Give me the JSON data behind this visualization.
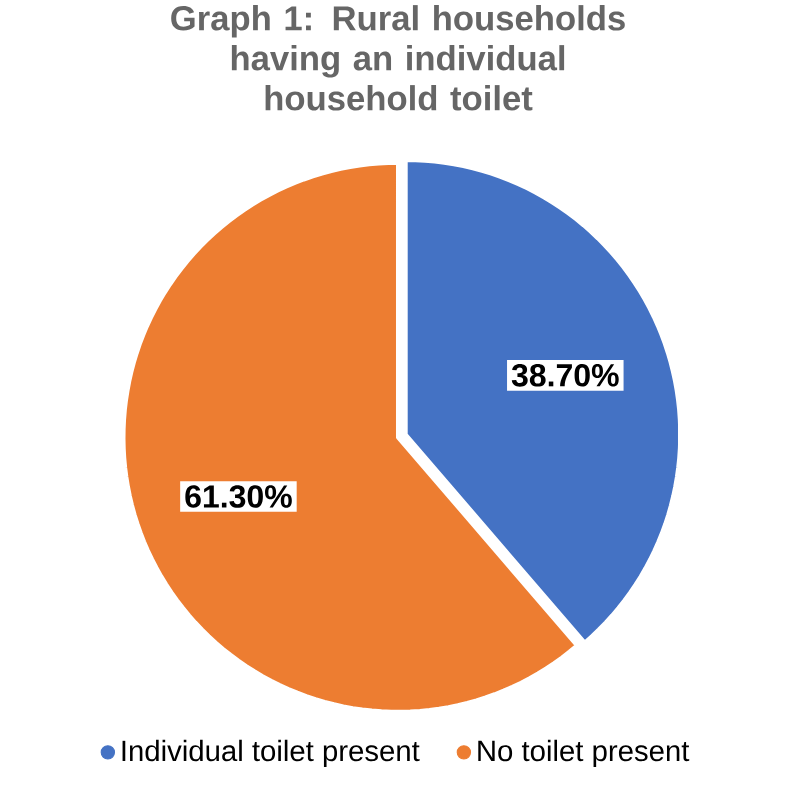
{
  "chart_data": {
    "type": "pie",
    "title": "Graph 1: Rural households having an individual household toilet",
    "categories": [
      "Individual toilet present",
      "No toilet present"
    ],
    "values": [
      38.7,
      61.3
    ],
    "colors": [
      "#4472c4",
      "#ed7d31"
    ],
    "value_labels": [
      "38.70%",
      "61.30%"
    ],
    "legend": "bottom"
  }
}
